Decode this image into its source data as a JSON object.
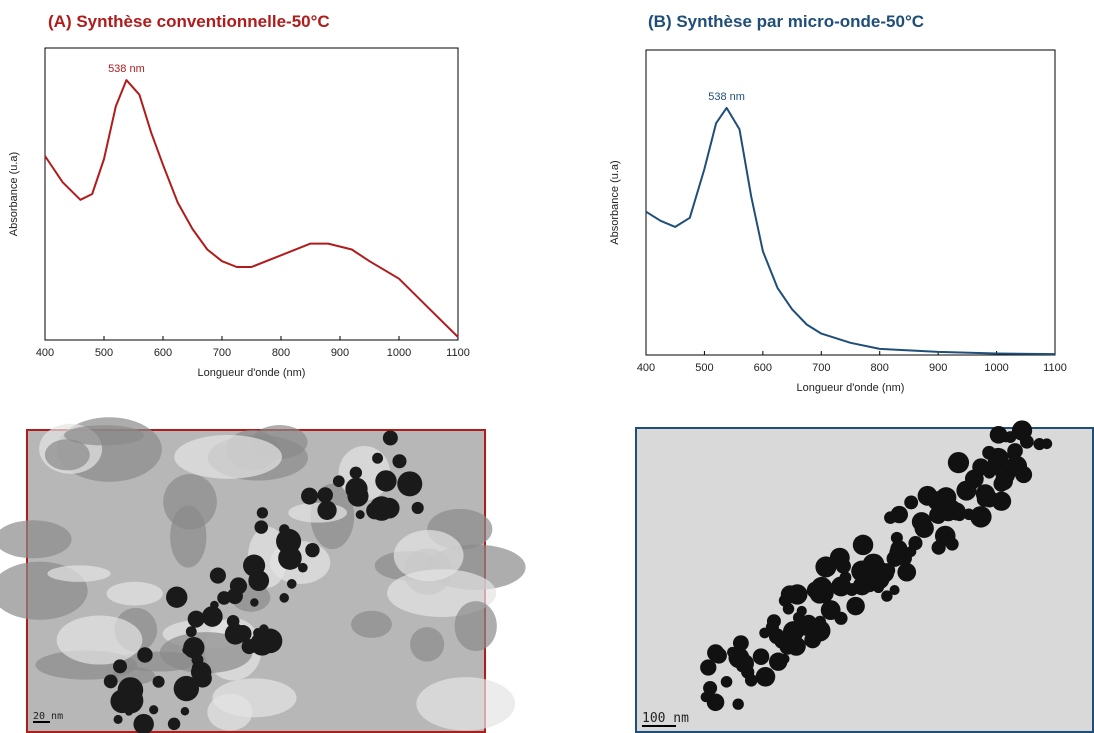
{
  "chart_data": [
    {
      "type": "line",
      "title": "(A) Synthèse conventionnelle-50°C",
      "xlabel": "Longueur d'onde (nm)",
      "ylabel": "Absorbance (u.a)",
      "x": [
        400,
        430,
        460,
        480,
        500,
        520,
        538,
        560,
        580,
        600,
        625,
        650,
        675,
        700,
        725,
        750,
        800,
        850,
        880,
        920,
        950,
        1000,
        1050,
        1100
      ],
      "series": [
        {
          "name": "Synthèse conventionnelle",
          "color": "#b01c1c",
          "values": [
            0.63,
            0.54,
            0.48,
            0.5,
            0.62,
            0.8,
            0.89,
            0.84,
            0.71,
            0.6,
            0.47,
            0.38,
            0.31,
            0.27,
            0.25,
            0.25,
            0.29,
            0.33,
            0.33,
            0.31,
            0.27,
            0.21,
            0.11,
            0.01
          ]
        }
      ],
      "annotation": {
        "text": "538 nm",
        "x": 538
      },
      "xlim": [
        400,
        1100
      ],
      "ylim": [
        0,
        1
      ],
      "xticks": [
        400,
        500,
        600,
        700,
        800,
        900,
        1000,
        1100
      ]
    },
    {
      "type": "line",
      "title": "(B) Synthèse par micro-onde-50°C",
      "xlabel": "Longueur d'onde (nm)",
      "ylabel": "Absorbance (u.a)",
      "x": [
        400,
        425,
        450,
        475,
        500,
        520,
        538,
        560,
        580,
        600,
        625,
        650,
        675,
        700,
        750,
        800,
        850,
        900,
        1000,
        1100
      ],
      "series": [
        {
          "name": "Synthèse par micro-onde",
          "color": "#1f4e79",
          "values": [
            0.47,
            0.44,
            0.42,
            0.45,
            0.61,
            0.76,
            0.81,
            0.74,
            0.52,
            0.34,
            0.22,
            0.15,
            0.1,
            0.07,
            0.04,
            0.02,
            0.015,
            0.01,
            0.005,
            0.003
          ]
        }
      ],
      "annotation": {
        "text": "538 nm",
        "x": 538
      },
      "xlim": [
        400,
        1100
      ],
      "ylim": [
        0,
        1
      ],
      "xticks": [
        400,
        500,
        600,
        700,
        800,
        900,
        1000,
        1100
      ]
    }
  ],
  "images": [
    {
      "scale_bar": "20 nm"
    },
    {
      "scale_bar": "100 nm"
    }
  ]
}
